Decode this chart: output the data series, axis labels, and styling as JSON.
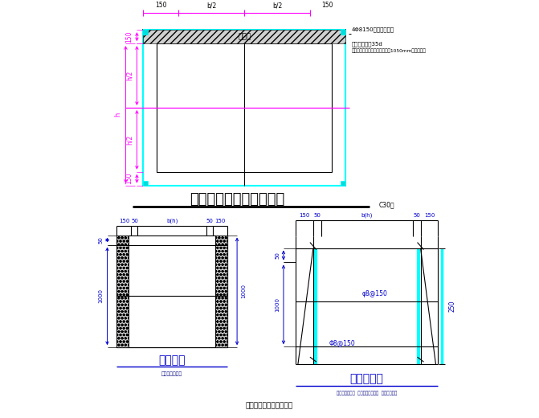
{
  "bg_color": "#ffffff",
  "lc": "#000000",
  "cc": "#00ffff",
  "mc": "#ff00ff",
  "bc": "#0000cd",
  "dbc": "#000080",
  "title1": "全埋地式抗滑桩护壁详图",
  "title1_note": "C30砼",
  "title2": "护壁详图",
  "title2_sub": "用于框式孔洞桩",
  "title3": "护壁加筋图",
  "title3_sub": "用于砂卵石层桩  用于普通粘土层桩  用于砂土层桩",
  "bottom_text": "人工挖孔桩抗滑桩时设置",
  "ann1": "4Φ8150双向护壁钢筋",
  "ann2": "上下钢筋搭接35d",
  "ann3": "相邻箱护壁底面背出顶地面距离1050mm架土不拆除",
  "rebar1": "φ8@150",
  "rebar2": "Φ8@150"
}
